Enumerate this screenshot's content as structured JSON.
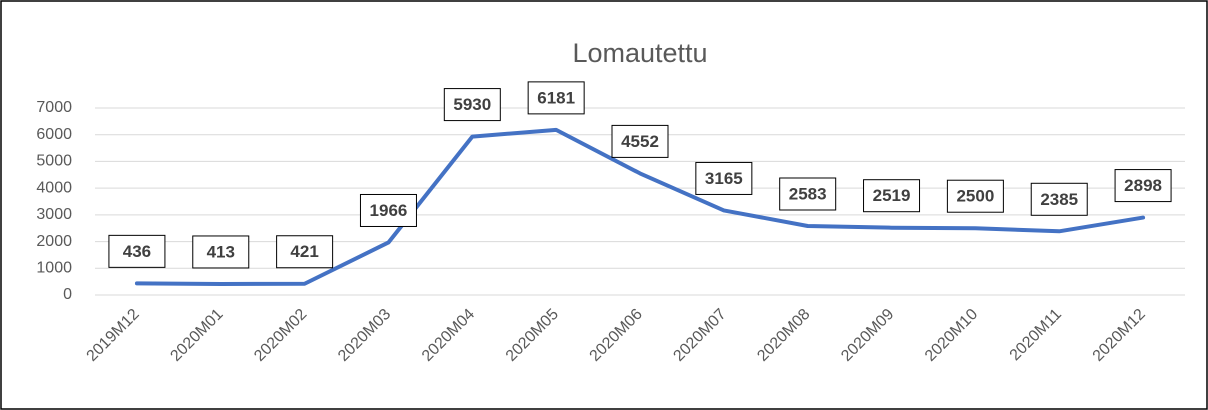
{
  "chart_data": {
    "type": "line",
    "title": "Lomautettu",
    "categories": [
      "2019M12",
      "2020M01",
      "2020M02",
      "2020M03",
      "2020M04",
      "2020M05",
      "2020M06",
      "2020M07",
      "2020M08",
      "2020M09",
      "2020M10",
      "2020M11",
      "2020M12"
    ],
    "series": [
      {
        "name": "Lomautettu",
        "color": "#4472c4",
        "values": [
          436,
          413,
          421,
          1966,
          5930,
          6181,
          4552,
          3165,
          2583,
          2519,
          2500,
          2385,
          2898
        ]
      }
    ],
    "ylim": [
      0,
      7000
    ],
    "yticks": [
      0,
      1000,
      2000,
      3000,
      4000,
      5000,
      6000,
      7000
    ],
    "grid": true
  }
}
